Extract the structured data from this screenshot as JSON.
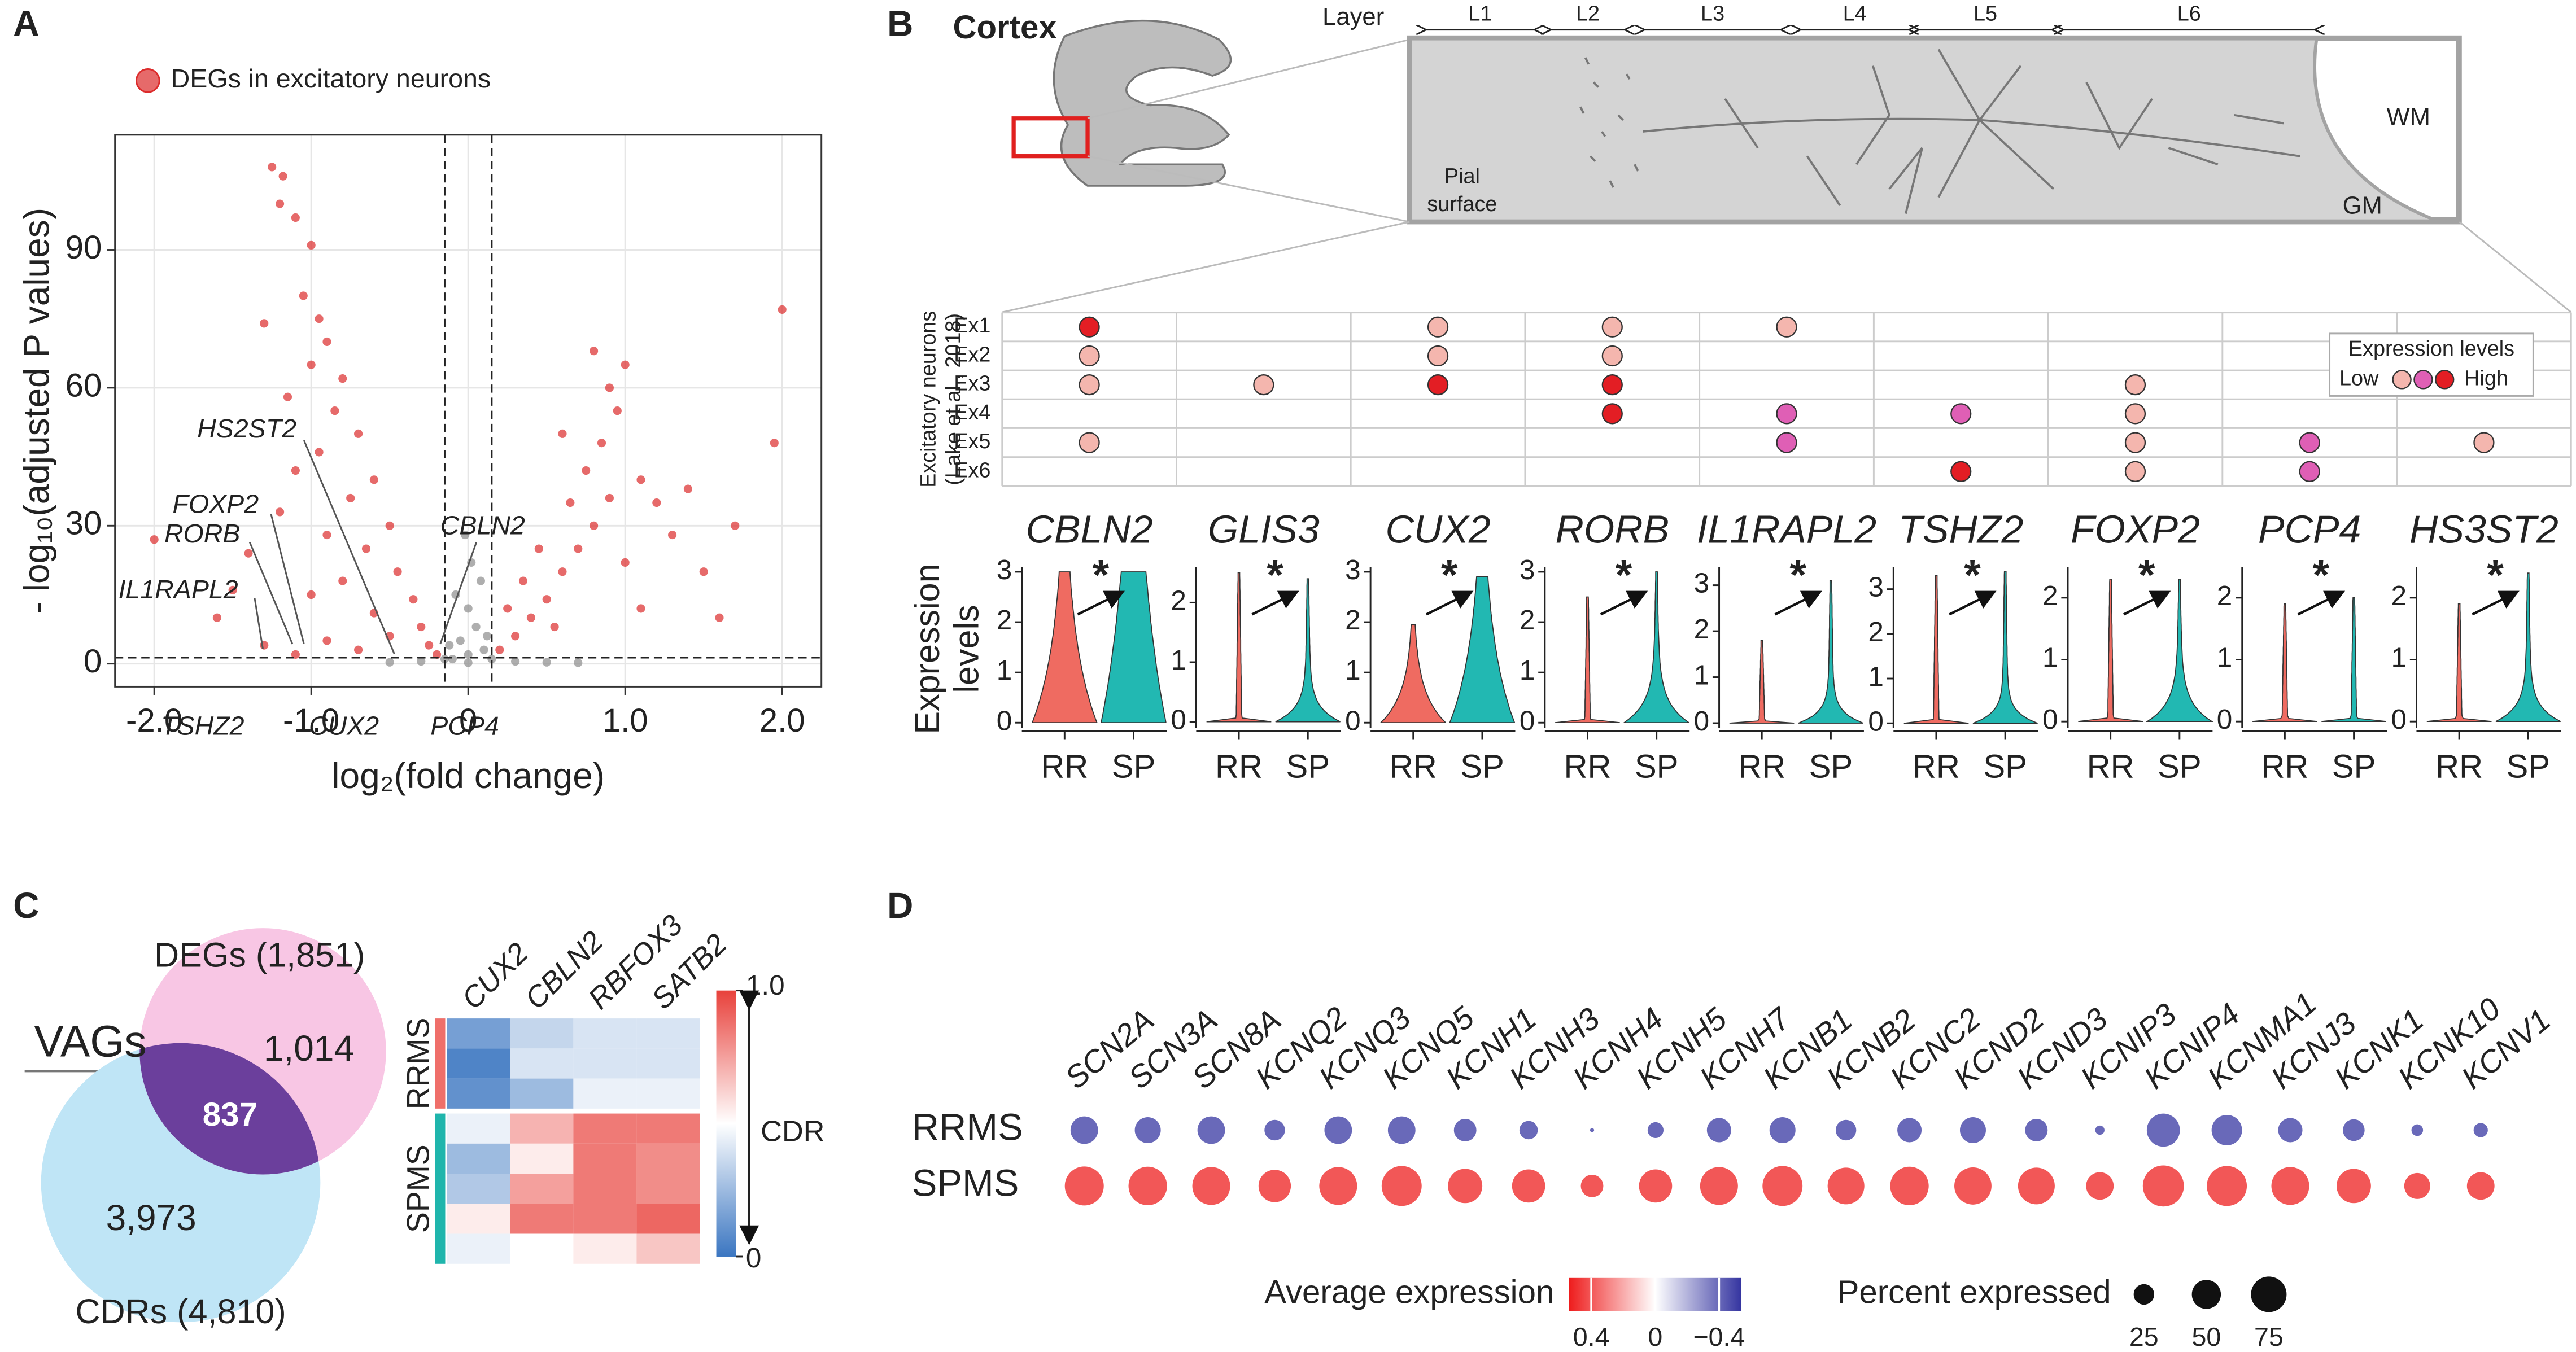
{
  "chart_data": [
    {
      "panel": "A",
      "type": "scatter",
      "xlabel": "log₂(fold change)",
      "ylabel": "- log₁₀(adjusted P values)",
      "xlim": [
        -2.25,
        2.25
      ],
      "ylim": [
        -5,
        115
      ],
      "xticks": [
        {
          "value": -2,
          "label": "-2.0"
        },
        {
          "value": -1,
          "label": "-1.0"
        },
        0,
        {
          "value": 1,
          "label": "1.0"
        },
        {
          "value": 2,
          "label": "2.0"
        }
      ],
      "yticks": [
        0,
        30,
        60,
        90
      ],
      "grid": true,
      "fc_threshold": [
        -0.15,
        0.15
      ],
      "p_threshold": 1.3,
      "series": [
        {
          "name": "DEGs in excitatory neurons",
          "color": "#dc2b2b",
          "x": [
            -1.25,
            -1.18,
            -1.2,
            -1.1,
            -1.0,
            -1.05,
            -0.95,
            -1.3,
            -0.9,
            -1.0,
            -0.8,
            -1.15,
            -0.85,
            -0.7,
            -0.95,
            -1.1,
            -0.6,
            -0.75,
            -1.2,
            -0.5,
            -0.9,
            -0.65,
            -1.4,
            -0.45,
            -0.8,
            -1.0,
            -0.35,
            -0.6,
            -1.6,
            -0.3,
            -0.5,
            -2.0,
            -1.5,
            -0.25,
            -0.9,
            -1.3,
            -0.2,
            -0.7,
            -1.1,
            0.2,
            0.3,
            0.4,
            0.5,
            0.6,
            0.7,
            0.8,
            0.9,
            0.75,
            0.85,
            0.95,
            0.9,
            1.0,
            0.8,
            1.1,
            1.2,
            1.3,
            1.0,
            1.5,
            1.4,
            0.55,
            0.35,
            0.45,
            0.65,
            1.1,
            2.0,
            1.95,
            1.7,
            1.6,
            0.25,
            0.6
          ],
          "y": [
            108,
            106,
            100,
            97,
            91,
            80,
            75,
            74,
            70,
            65,
            62,
            58,
            55,
            50,
            46,
            42,
            40,
            36,
            33,
            30,
            28,
            25,
            24,
            20,
            18,
            15,
            14,
            11,
            10,
            8,
            6,
            27,
            16,
            4,
            5,
            4,
            2,
            3,
            2,
            3,
            6,
            10,
            14,
            20,
            25,
            30,
            36,
            42,
            48,
            55,
            60,
            65,
            68,
            40,
            35,
            28,
            22,
            20,
            38,
            8,
            18,
            25,
            35,
            12,
            77,
            48,
            30,
            10,
            12,
            50
          ]
        },
        {
          "color": "#8c8c8c",
          "x": [
            -0.1,
            0,
            0.1,
            -0.05,
            0.05,
            0,
            -0.08,
            0.08,
            0.02,
            -0.02,
            0.12,
            -0.12,
            0.15,
            -0.15,
            -0.3,
            0.3,
            -0.5,
            0.5,
            0,
            0.7
          ],
          "y": [
            1,
            2,
            3,
            5,
            8,
            12,
            15,
            18,
            22,
            28,
            6,
            4,
            1,
            1,
            0.5,
            0.5,
            0.3,
            0.3,
            0.2,
            0.2
          ]
        }
      ],
      "annotations": [
        "HS2ST2",
        "FOXP2",
        "RORB",
        "IL1RAPL2",
        "TSHZ2",
        "CUX2",
        "PCP4",
        "CBLN2"
      ]
    },
    {
      "panel": "B",
      "type": "violin",
      "title": "Cortex",
      "illustration": {
        "layer_title": "Layer",
        "layers": [
          "L1",
          "L2",
          "L3",
          "L4",
          "L5",
          "L6"
        ],
        "pial_surface": [
          "Pial",
          "surface"
        ],
        "wm": "WM",
        "gm": "GM"
      },
      "matrix": {
        "ylabel": [
          "Excitatory neurons",
          "(Lake et al., 2018)"
        ],
        "rows": [
          "Ex1",
          "Ex2",
          "Ex3",
          "Ex4",
          "Ex5",
          "Ex6"
        ],
        "levels": [
          [
            3,
            null,
            1,
            1,
            1,
            null,
            null,
            null,
            null
          ],
          [
            1,
            null,
            1,
            1,
            null,
            null,
            null,
            null,
            null
          ],
          [
            1,
            1,
            3,
            3,
            null,
            null,
            1,
            null,
            null
          ],
          [
            null,
            null,
            null,
            3,
            2,
            2,
            1,
            null,
            null
          ],
          [
            1,
            null,
            null,
            null,
            2,
            null,
            1,
            2,
            1
          ],
          [
            null,
            null,
            null,
            null,
            null,
            3,
            1,
            2,
            null
          ]
        ],
        "colors": [
          "#f4b6ae",
          "#df5fb5",
          "#e31e24"
        ],
        "legend_title": "Expression levels",
        "legend_low": "Low",
        "legend_high": "High"
      },
      "ylabel": [
        "Expression",
        "levels"
      ],
      "groups": [
        "RR",
        "SP"
      ],
      "group_colors": [
        "#ef6b61",
        "#22b8b2"
      ],
      "genes": [
        {
          "name": "CBLN2",
          "ylim": [
            -0.1,
            3.1
          ],
          "yticks": [
            0,
            1,
            2,
            3
          ],
          "significance": "*",
          "max": [
            3.0,
            3.0
          ],
          "median": [
            0.8,
            1.6
          ]
        },
        {
          "name": "GLIS3",
          "ylim": [
            -0.1,
            2.6
          ],
          "yticks": [
            0,
            1,
            2
          ],
          "significance": "*",
          "max": [
            2.5,
            2.4
          ],
          "median": [
            0,
            0.12
          ]
        },
        {
          "name": "CUX2",
          "ylim": [
            -0.1,
            3.1
          ],
          "yticks": [
            0,
            1,
            2,
            3
          ],
          "significance": "*",
          "max": [
            1.95,
            2.9
          ],
          "median": [
            0.3,
            0.8
          ]
        },
        {
          "name": "RORB",
          "ylim": [
            -0.1,
            3.1
          ],
          "yticks": [
            0,
            1,
            2,
            3
          ],
          "significance": "*",
          "max": [
            2.5,
            3.0
          ],
          "median": [
            0,
            0.2
          ]
        },
        {
          "name": "IL1RAPL2",
          "ylim": [
            -0.1,
            3.4
          ],
          "yticks": [
            0,
            1,
            2,
            3
          ],
          "significance": "*",
          "max": [
            1.8,
            3.1
          ],
          "median": [
            0,
            0.12
          ]
        },
        {
          "name": "TSHZ2",
          "ylim": [
            -0.1,
            3.5
          ],
          "yticks": [
            0,
            1,
            2,
            3
          ],
          "significance": "*",
          "max": [
            3.3,
            3.4
          ],
          "median": [
            0,
            0.12
          ]
        },
        {
          "name": "FOXP2",
          "ylim": [
            -0.1,
            2.5
          ],
          "yticks": [
            0,
            1,
            2
          ],
          "significance": "*",
          "max": [
            2.3,
            2.3
          ],
          "median": [
            0,
            0.15
          ]
        },
        {
          "name": "PCP4",
          "ylim": [
            -0.1,
            2.5
          ],
          "yticks": [
            0,
            1,
            2
          ],
          "significance": "*",
          "max": [
            1.9,
            2.0
          ],
          "median": [
            0,
            0
          ]
        },
        {
          "name": "HS3ST2",
          "ylim": [
            -0.1,
            2.5
          ],
          "yticks": [
            0,
            1,
            2
          ],
          "significance": "*",
          "max": [
            1.9,
            2.4
          ],
          "median": [
            0,
            0.12
          ]
        }
      ]
    },
    {
      "panel": "C",
      "type": "heatmap",
      "venn": {
        "set_a": "DEGs (1,851)",
        "set_b": "CDRs (4,810)",
        "only_a": "1,014",
        "both": "837",
        "only_b": "3,973",
        "intersection_label": "VAGs",
        "colors": [
          "#f8c6e4",
          "#bfe5f6",
          "#6b3f9c"
        ]
      },
      "columns": [
        "CUX2",
        "CBLN2",
        "RBFOX3",
        "SATB2"
      ],
      "groups": [
        {
          "name": "RRMS",
          "color": "#ef6f6a",
          "values": [
            [
              0.15,
              0.35,
              0.4,
              0.4
            ],
            [
              0.05,
              0.4,
              0.4,
              0.4
            ],
            [
              0.1,
              0.25,
              0.45,
              0.45
            ]
          ]
        },
        {
          "name": "SPMS",
          "color": "#1fb5ac",
          "values": [
            [
              0.45,
              0.7,
              0.85,
              0.85
            ],
            [
              0.25,
              0.55,
              0.85,
              0.8
            ],
            [
              0.3,
              0.75,
              0.85,
              0.8
            ],
            [
              0.55,
              0.85,
              0.85,
              0.9
            ],
            [
              0.45,
              0.5,
              0.55,
              0.65
            ]
          ]
        }
      ],
      "clim": [
        0,
        1
      ],
      "cticks": [
        0,
        {
          "value": 1,
          "label": "1.0"
        }
      ],
      "clabel": "CDR",
      "colors": [
        "#3b76c1",
        "#ffffff",
        "#e8413b"
      ]
    },
    {
      "panel": "D",
      "type": "dotplot",
      "genes": [
        "SCN2A",
        "SCN3A",
        "SCN8A",
        "KCNQ2",
        "KCNQ3",
        "KCNQ5",
        "KCNH1",
        "KCNH3",
        "KCNH4",
        "KCNH5",
        "KCNH7",
        "KCNB1",
        "KCNB2",
        "KCNC2",
        "KCND2",
        "KCND3",
        "KCNIP3",
        "KCNIP4",
        "KCNMA1",
        "KCNJ3",
        "KCNK1",
        "KCNK10",
        "KCNV1"
      ],
      "groups": [
        "RRMS",
        "SPMS"
      ],
      "avg_expression": [
        [
          -0.4,
          -0.4,
          -0.4,
          -0.4,
          -0.4,
          -0.4,
          -0.4,
          -0.4,
          -0.4,
          -0.4,
          -0.4,
          -0.4,
          -0.4,
          -0.4,
          -0.4,
          -0.4,
          -0.4,
          -0.4,
          -0.4,
          -0.4,
          -0.4,
          -0.4,
          -0.4
        ],
        [
          0.4,
          0.4,
          0.4,
          0.4,
          0.4,
          0.4,
          0.4,
          0.4,
          0.4,
          0.4,
          0.4,
          0.4,
          0.4,
          0.4,
          0.4,
          0.4,
          0.4,
          0.4,
          0.4,
          0.4,
          0.4,
          0.4,
          0.4
        ]
      ],
      "percent_expressed": [
        [
          45,
          40,
          45,
          25,
          45,
          45,
          30,
          20,
          1,
          15,
          35,
          40,
          25,
          35,
          40,
          30,
          5,
          65,
          55,
          35,
          28,
          8,
          12
        ],
        [
          90,
          88,
          85,
          62,
          85,
          95,
          70,
          65,
          30,
          65,
          85,
          95,
          80,
          88,
          82,
          80,
          45,
          100,
          95,
          85,
          70,
          40,
          45
        ]
      ],
      "color_label": "Average expression",
      "clim": [
        0.54,
        -0.54
      ],
      "cticks": [
        0.4,
        0,
        {
          "value": -0.4,
          "label": "−0.4"
        }
      ],
      "colors": [
        "#3434a0",
        "#ffffff",
        "#ee1c1c"
      ],
      "size_label": "Percent expressed",
      "size_ticks": [
        25,
        50,
        75
      ]
    }
  ]
}
